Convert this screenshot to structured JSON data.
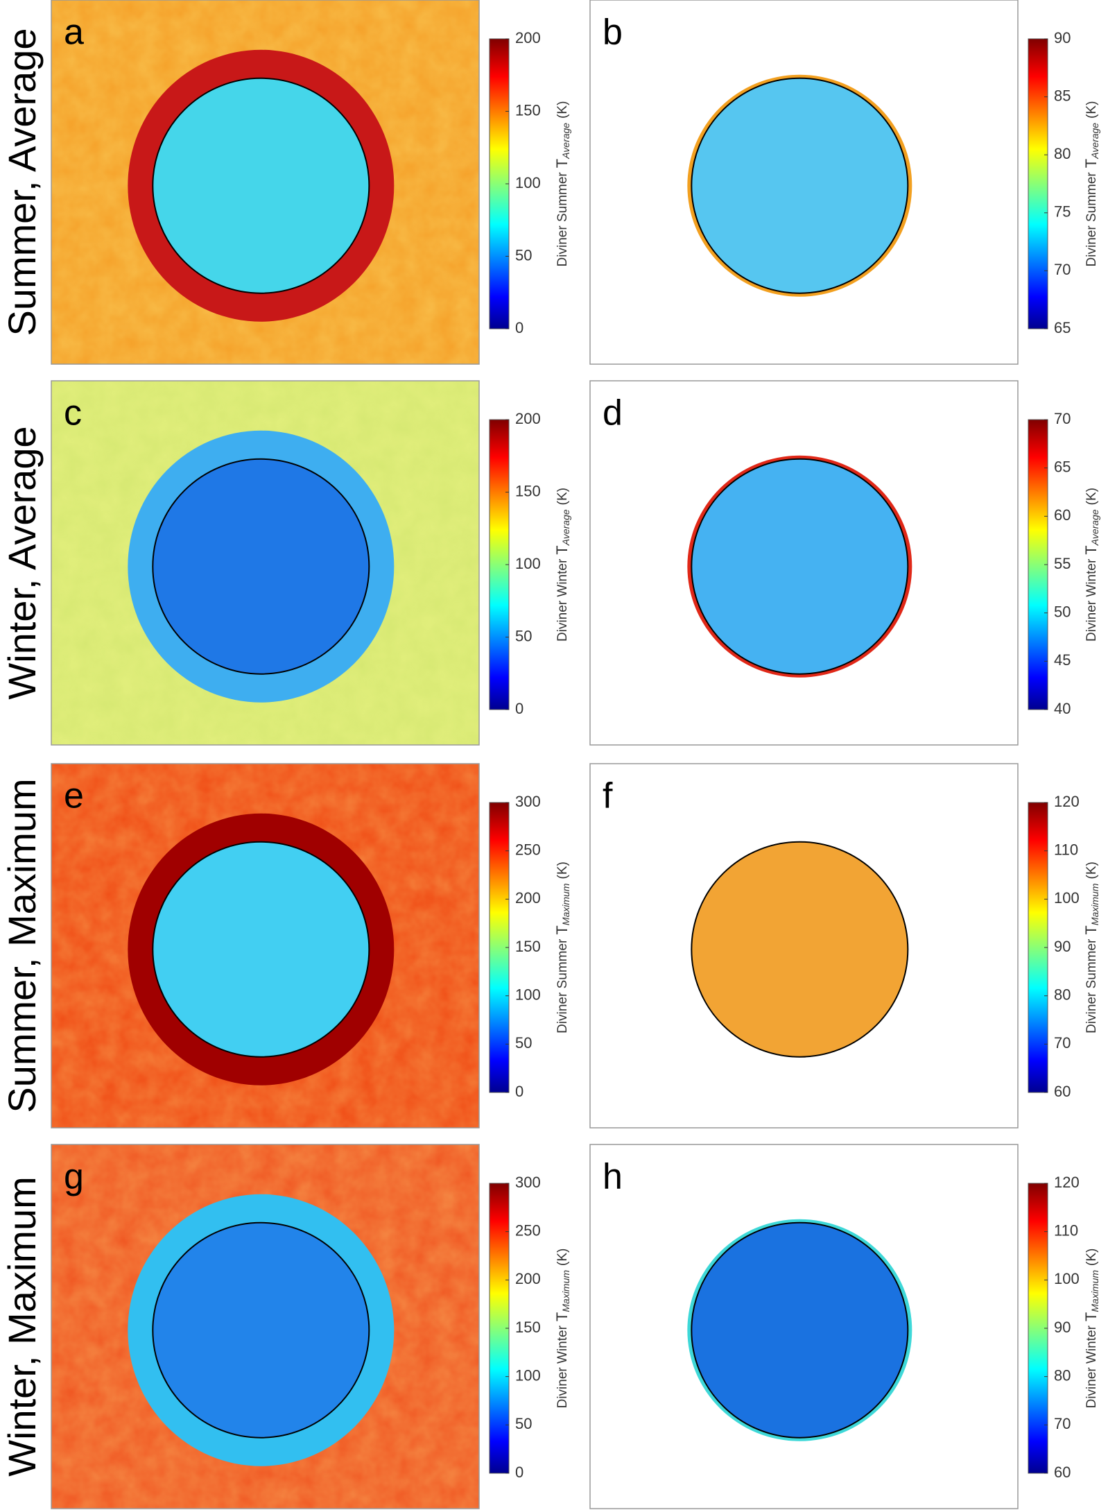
{
  "row_labels": [
    "Summer, Average",
    "Winter, Average",
    "Summer, Maximum",
    "Winter, Maximum"
  ],
  "panels": [
    {
      "letter": "a",
      "colorbar": {
        "label": {
          "prefix": "Diviner Summer",
          "symbol": "T",
          "subscript": "Average",
          "unit": "(K)"
        },
        "lim": [
          0,
          200
        ],
        "ticks": [
          0,
          50,
          100,
          150,
          200
        ]
      }
    },
    {
      "letter": "b",
      "colorbar": {
        "label": {
          "prefix": "Diviner Summer",
          "symbol": "T",
          "subscript": "Average",
          "unit": "(K)"
        },
        "lim": [
          65,
          90
        ],
        "ticks": [
          65,
          70,
          75,
          80,
          85,
          90
        ]
      }
    },
    {
      "letter": "c",
      "colorbar": {
        "label": {
          "prefix": "Diviner Winter",
          "symbol": "T",
          "subscript": "Average",
          "unit": "(K)"
        },
        "lim": [
          0,
          200
        ],
        "ticks": [
          0,
          50,
          100,
          150,
          200
        ]
      }
    },
    {
      "letter": "d",
      "colorbar": {
        "label": {
          "prefix": "Diviner Winter",
          "symbol": "T",
          "subscript": "Average",
          "unit": "(K)"
        },
        "lim": [
          40,
          70
        ],
        "ticks": [
          40,
          45,
          50,
          55,
          60,
          65,
          70
        ]
      }
    },
    {
      "letter": "e",
      "colorbar": {
        "label": {
          "prefix": "Diviner Summer",
          "symbol": "T",
          "subscript": "Maximum",
          "unit": "(K)"
        },
        "lim": [
          0,
          300
        ],
        "ticks": [
          0,
          50,
          100,
          150,
          200,
          250,
          300
        ]
      }
    },
    {
      "letter": "f",
      "colorbar": {
        "label": {
          "prefix": "Diviner Summer",
          "symbol": "T",
          "subscript": "Maximum",
          "unit": "(K)"
        },
        "lim": [
          60,
          120
        ],
        "ticks": [
          60,
          70,
          80,
          90,
          100,
          110,
          120
        ]
      }
    },
    {
      "letter": "g",
      "colorbar": {
        "label": {
          "prefix": "Diviner Winter",
          "symbol": "T",
          "subscript": "Maximum",
          "unit": "(K)"
        },
        "lim": [
          0,
          300
        ],
        "ticks": [
          0,
          50,
          100,
          150,
          200,
          250,
          300
        ]
      }
    },
    {
      "letter": "h",
      "colorbar": {
        "label": {
          "prefix": "Diviner Winter",
          "symbol": "T",
          "subscript": "Maximum",
          "unit": "(K)"
        },
        "lim": [
          60,
          120
        ],
        "ticks": [
          60,
          70,
          80,
          90,
          100,
          110,
          120
        ]
      }
    }
  ]
}
